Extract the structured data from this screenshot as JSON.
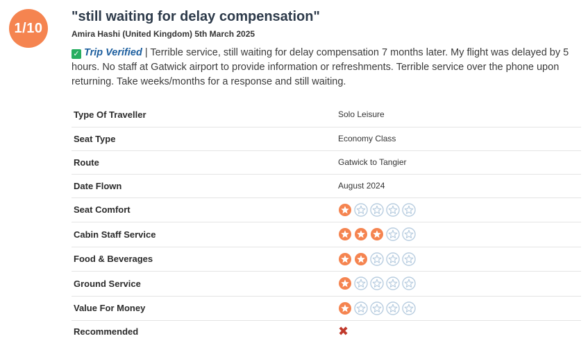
{
  "review": {
    "rating_badge": "1/10",
    "title": "\"still waiting for delay compensation\"",
    "byline": "Amira Hashi (United Kingdom) 5th March 2025",
    "verified_label": "Trip Verified",
    "separator": " | ",
    "body": "Terrible service, still waiting for delay compensation 7 months later. My flight was delayed by 5 hours. No staff at Gatwick airport to provide information or refreshments. Terrible service over the phone upon returning. Take weeks/months for a response and still waiting."
  },
  "details": [
    {
      "label": "Type Of Traveller",
      "value": "Solo Leisure"
    },
    {
      "label": "Seat Type",
      "value": "Economy Class"
    },
    {
      "label": "Route",
      "value": "Gatwick to Tangier"
    },
    {
      "label": "Date Flown",
      "value": "August 2024"
    }
  ],
  "star_ratings": [
    {
      "label": "Seat Comfort",
      "stars": 1,
      "max": 5
    },
    {
      "label": "Cabin Staff Service",
      "stars": 3,
      "max": 5
    },
    {
      "label": "Food & Beverages",
      "stars": 2,
      "max": 5
    },
    {
      "label": "Ground Service",
      "stars": 1,
      "max": 5
    },
    {
      "label": "Value For Money",
      "stars": 1,
      "max": 5
    }
  ],
  "recommended": {
    "label": "Recommended",
    "value": "no",
    "icon": "cross-icon"
  },
  "colors": {
    "badge": "#f58450",
    "star_filled": "#f58450",
    "star_empty": "#b8cde0",
    "verified": "#27ae60",
    "cross": "#c0392b"
  }
}
